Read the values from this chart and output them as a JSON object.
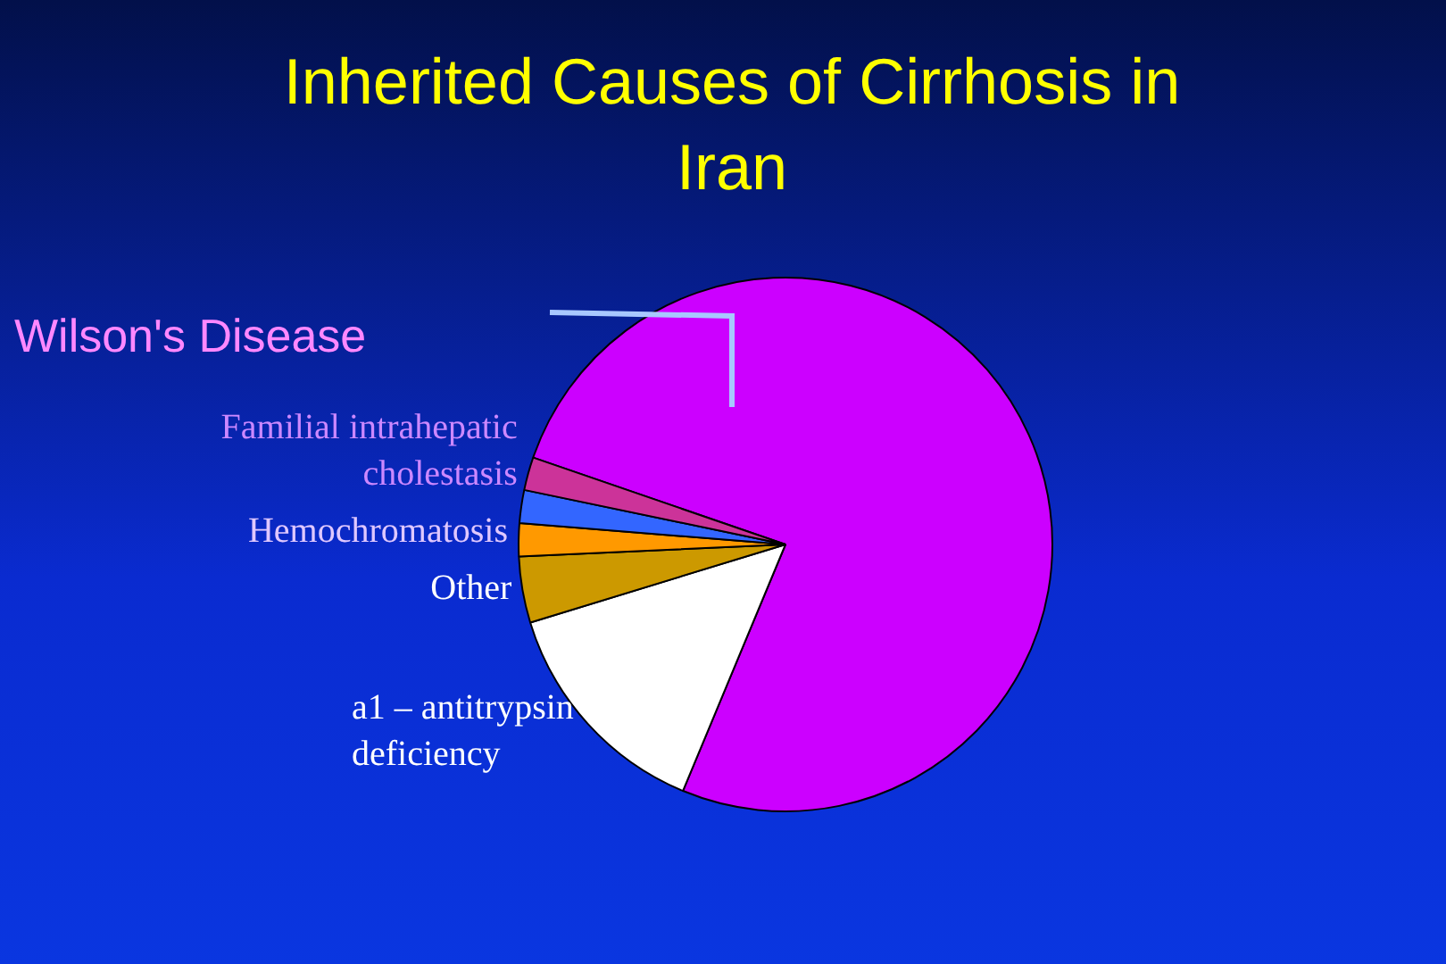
{
  "chart_data": {
    "type": "pie",
    "title": "Inherited Causes of Cirrhosis in Iran",
    "categories": [
      "Wilson's Disease",
      "a1 – antitrypsin deficiency",
      "Other",
      "Hemochromatosis",
      null,
      "Familial intrahepatic cholestasis"
    ],
    "values": [
      76,
      14,
      4,
      2,
      2,
      2
    ],
    "colors": [
      "#cc00ff",
      "#ffffff",
      "#cc9900",
      "#ff9900",
      "#3366ff",
      "#cc3399"
    ]
  }
}
